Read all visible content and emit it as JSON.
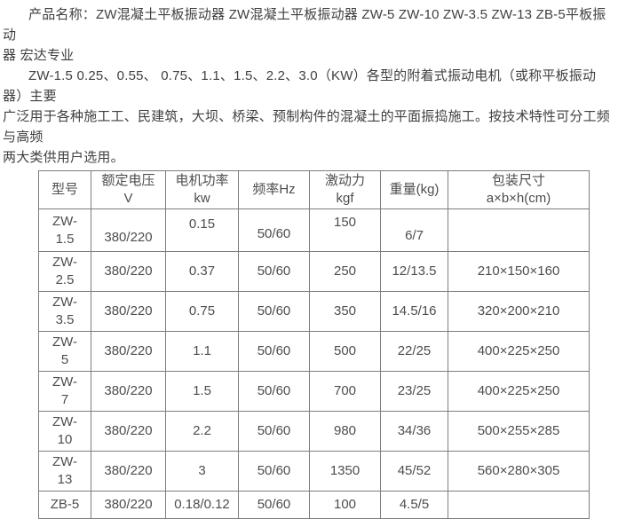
{
  "page": {
    "background_color": "#ffffff",
    "text_color": "#3f3f3f",
    "table_border_color": "#7d7d7d"
  },
  "intro": {
    "paragraph1": "产品名称：ZW混凝土平板振动器 ZW混凝土平板振动器 ZW-5 ZW-10 ZW-3.5 ZW-13 ZB-5平板振动\n器 宏达专业",
    "paragraph2": "ZW-1.5 0.25、0.55、 0.75、1.1、1.5、2.2、3.0（KW）各型的附着式振动电机（或称平板振动器）主要\n广泛用于各种施工工、民建筑，大坝、桥梁、预制构件的混凝土的平面振捣施工。按技术特性可分工频与高频\n两大类供用户选用。"
  },
  "spec_table": {
    "headers": [
      {
        "id": "model",
        "label": "型号"
      },
      {
        "id": "voltage",
        "label": "额定电压\nV"
      },
      {
        "id": "power",
        "label": "电机功率\nkw"
      },
      {
        "id": "frequency",
        "label": "频率Hz"
      },
      {
        "id": "force",
        "label": "激动力\nkgf"
      },
      {
        "id": "weight",
        "label": "重量(kg)"
      },
      {
        "id": "package",
        "label": "包装尺寸\na×b×h(cm)"
      }
    ],
    "rows": [
      {
        "model": "ZW-\n1.5",
        "voltage": "380/220",
        "power": "0.15",
        "frequency": "50/60",
        "force": "150",
        "weight": "6/7",
        "package": ""
      },
      {
        "model": "ZW-\n2.5",
        "voltage": "380/220",
        "power": "0.37",
        "frequency": "50/60",
        "force": "250",
        "weight": "12/13.5",
        "package": "210×150×160"
      },
      {
        "model": "ZW-\n3.5",
        "voltage": "380/220",
        "power": "0.75",
        "frequency": "50/60",
        "force": "350",
        "weight": "14.5/16",
        "package": "320×200×210"
      },
      {
        "model": "ZW-\n5",
        "voltage": "380/220",
        "power": "1.1",
        "frequency": "50/60",
        "force": "500",
        "weight": "22/25",
        "package": "400×225×250"
      },
      {
        "model": "ZW-\n7",
        "voltage": "380/220",
        "power": "1.5",
        "frequency": "50/60",
        "force": "700",
        "weight": "23/25",
        "package": "400×225×250"
      },
      {
        "model": "ZW-\n10",
        "voltage": "380/220",
        "power": "2.2",
        "frequency": "50/60",
        "force": "980",
        "weight": "34/36",
        "package": "500×255×285"
      },
      {
        "model": "ZW-\n13",
        "voltage": "380/220",
        "power": "3",
        "frequency": "50/60",
        "force": "1350",
        "weight": "45/52",
        "package": "560×280×305"
      },
      {
        "model": "ZB-5",
        "voltage": "380/220",
        "power": "0.18/0.12",
        "frequency": "50/60",
        "force": "100",
        "weight": "4.5/5",
        "package": ""
      }
    ]
  }
}
